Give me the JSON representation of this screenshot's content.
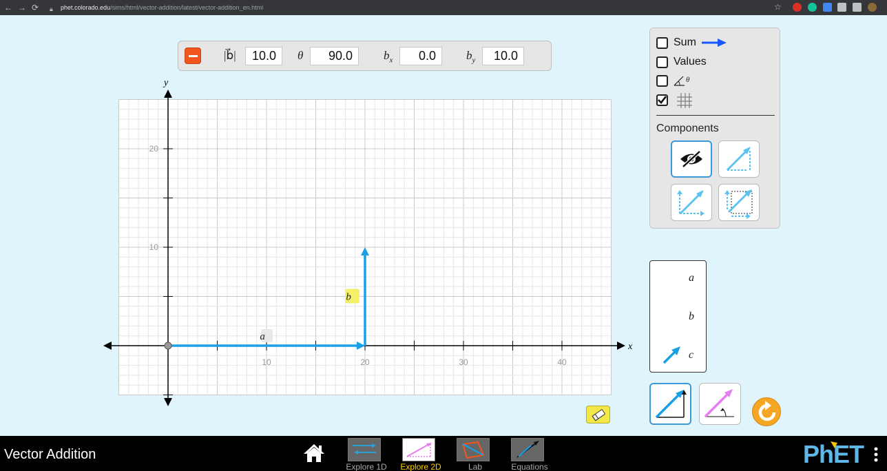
{
  "browser": {
    "url_host": "phet.colorado.edu",
    "url_path": "/sims/html/vector-addition/latest/vector-addition_en.html"
  },
  "vector_panel": {
    "mag_label": "|b⃗|",
    "mag_value": "10.0",
    "theta_label": "θ",
    "theta_value": "90.0",
    "bx_label": "bx",
    "bx_value": "0.0",
    "by_label": "by",
    "by_value": "10.0"
  },
  "graph": {
    "x_axis_label": "x",
    "y_axis_label": "y",
    "x_ticks": [
      "10",
      "20",
      "30",
      "40"
    ],
    "y_ticks": [
      "10",
      "20"
    ],
    "vector_a_label": "a⃗",
    "vector_b_label": "b⃗",
    "vector_a": {
      "tail": [
        0,
        0
      ],
      "tip": [
        20,
        0
      ]
    },
    "vector_b": {
      "tail": [
        20,
        0
      ],
      "tip": [
        20,
        10
      ]
    },
    "colors": {
      "vector": "#1aa0e6",
      "label_a_bg": "#e8e8e8",
      "label_b_bg": "#f5ef6a",
      "sum": "#1859ff",
      "angle_vector": "#e57ef0"
    }
  },
  "checkboxes": {
    "sum_label": "Sum",
    "sum_checked": false,
    "values_label": "Values",
    "values_checked": false,
    "angle_checked": false,
    "angle_symbol": "θ",
    "grid_checked": true
  },
  "components": {
    "label": "Components"
  },
  "vector_toolbox": {
    "a_label": "a⃗",
    "b_label": "b⃗",
    "c_label": "c⃗"
  },
  "navbar": {
    "title": "Vector Addition",
    "screens": [
      "Explore 1D",
      "Explore 2D",
      "Lab",
      "Equations"
    ],
    "selected_screen": "Explore 2D"
  }
}
